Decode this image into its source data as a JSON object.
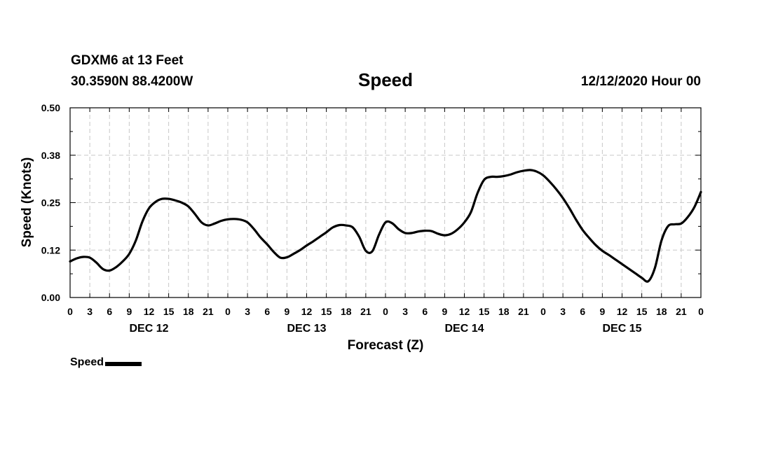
{
  "header": {
    "station": "GDXM6 at 13 Feet",
    "coords": "30.3590N 88.4200W",
    "title": "Speed",
    "run": "12/12/2020 Hour 00"
  },
  "legend": {
    "label": "Speed",
    "color": "#000000"
  },
  "chart_data": {
    "type": "line",
    "title": "Speed",
    "xlabel": "Forecast (Z)",
    "ylabel": "Speed (Knots)",
    "xlim": [
      0,
      96
    ],
    "ylim": [
      0,
      0.5
    ],
    "grid": true,
    "legend_position": "bottom-left",
    "y_ticks": [
      {
        "value": 0.0,
        "label": "0.00"
      },
      {
        "value": 0.125,
        "label": "0.12"
      },
      {
        "value": 0.25,
        "label": "0.25"
      },
      {
        "value": 0.375,
        "label": "0.38"
      },
      {
        "value": 0.5,
        "label": "0.50"
      }
    ],
    "x_ticks": [
      {
        "value": 0,
        "label": "0"
      },
      {
        "value": 3,
        "label": "3"
      },
      {
        "value": 6,
        "label": "6"
      },
      {
        "value": 9,
        "label": "9"
      },
      {
        "value": 12,
        "label": "12"
      },
      {
        "value": 15,
        "label": "15"
      },
      {
        "value": 18,
        "label": "18"
      },
      {
        "value": 21,
        "label": "21"
      },
      {
        "value": 24,
        "label": "0"
      },
      {
        "value": 27,
        "label": "3"
      },
      {
        "value": 30,
        "label": "6"
      },
      {
        "value": 33,
        "label": "9"
      },
      {
        "value": 36,
        "label": "12"
      },
      {
        "value": 39,
        "label": "15"
      },
      {
        "value": 42,
        "label": "18"
      },
      {
        "value": 45,
        "label": "21"
      },
      {
        "value": 48,
        "label": "0"
      },
      {
        "value": 51,
        "label": "3"
      },
      {
        "value": 54,
        "label": "6"
      },
      {
        "value": 57,
        "label": "9"
      },
      {
        "value": 60,
        "label": "12"
      },
      {
        "value": 63,
        "label": "15"
      },
      {
        "value": 66,
        "label": "18"
      },
      {
        "value": 69,
        "label": "21"
      },
      {
        "value": 72,
        "label": "0"
      },
      {
        "value": 75,
        "label": "3"
      },
      {
        "value": 78,
        "label": "6"
      },
      {
        "value": 81,
        "label": "9"
      },
      {
        "value": 84,
        "label": "12"
      },
      {
        "value": 87,
        "label": "15"
      },
      {
        "value": 90,
        "label": "18"
      },
      {
        "value": 93,
        "label": "21"
      },
      {
        "value": 96,
        "label": "0"
      }
    ],
    "day_labels": [
      {
        "value": 12,
        "label": "DEC 12"
      },
      {
        "value": 36,
        "label": "DEC 13"
      },
      {
        "value": 60,
        "label": "DEC 14"
      },
      {
        "value": 84,
        "label": "DEC 15"
      }
    ],
    "series": [
      {
        "name": "Speed",
        "color": "#000000",
        "x": [
          0,
          1,
          2,
          3,
          4,
          5,
          6,
          7,
          8,
          9,
          10,
          11,
          12,
          13,
          14,
          15,
          16,
          17,
          18,
          19,
          20,
          21,
          22,
          23,
          24,
          25,
          26,
          27,
          28,
          29,
          30,
          31,
          32,
          33,
          34,
          35,
          36,
          37,
          38,
          39,
          40,
          41,
          42,
          43,
          44,
          45,
          46,
          47,
          48,
          49,
          50,
          51,
          52,
          53,
          54,
          55,
          56,
          57,
          58,
          59,
          60,
          61,
          62,
          63,
          64,
          65,
          66,
          67,
          68,
          69,
          70,
          71,
          72,
          73,
          74,
          75,
          76,
          77,
          78,
          79,
          80,
          81,
          82,
          83,
          84,
          85,
          86,
          87,
          88,
          89,
          90,
          91,
          92,
          93,
          94,
          95,
          96
        ],
        "values": [
          0.095,
          0.103,
          0.107,
          0.105,
          0.092,
          0.075,
          0.071,
          0.08,
          0.095,
          0.115,
          0.15,
          0.2,
          0.235,
          0.252,
          0.26,
          0.26,
          0.256,
          0.25,
          0.24,
          0.22,
          0.198,
          0.19,
          0.195,
          0.202,
          0.206,
          0.207,
          0.205,
          0.198,
          0.18,
          0.158,
          0.14,
          0.12,
          0.105,
          0.106,
          0.115,
          0.125,
          0.137,
          0.148,
          0.16,
          0.172,
          0.185,
          0.191,
          0.19,
          0.185,
          0.16,
          0.123,
          0.122,
          0.165,
          0.198,
          0.196,
          0.18,
          0.17,
          0.17,
          0.174,
          0.176,
          0.175,
          0.168,
          0.164,
          0.168,
          0.18,
          0.198,
          0.225,
          0.275,
          0.31,
          0.318,
          0.318,
          0.32,
          0.324,
          0.33,
          0.334,
          0.336,
          0.332,
          0.322,
          0.305,
          0.285,
          0.262,
          0.235,
          0.205,
          0.178,
          0.157,
          0.138,
          0.123,
          0.112,
          0.1,
          0.088,
          0.076,
          0.064,
          0.052,
          0.043,
          0.078,
          0.15,
          0.188,
          0.193,
          0.195,
          0.212,
          0.238,
          0.278
        ]
      }
    ]
  }
}
